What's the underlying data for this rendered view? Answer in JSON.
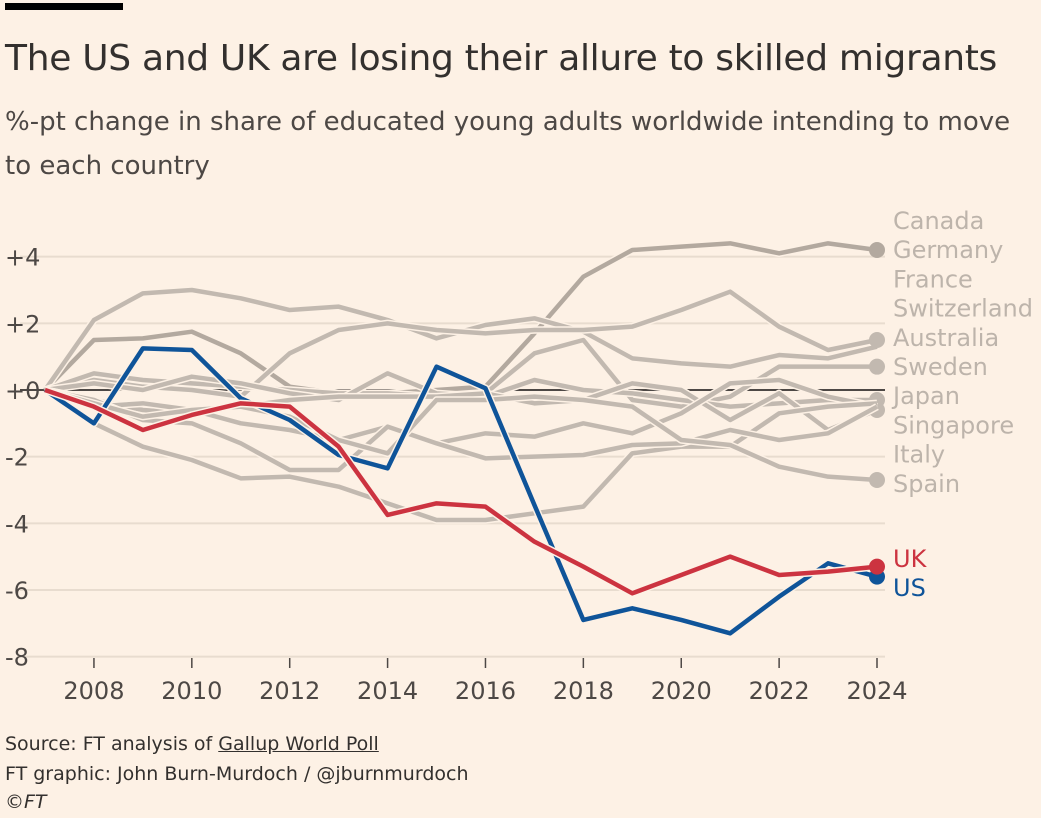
{
  "header": {
    "title": "The US and UK are losing their allure to skilled migrants",
    "subtitle": "%-pt change in share of educated young adults worldwide intending to move to each country"
  },
  "footer": {
    "source_prefix": "Source: FT analysis of ",
    "source_link": "Gallup World Poll",
    "credit": "FT graphic: John Burn-Murdoch / @jburnmurdoch",
    "copyright": "©FT"
  },
  "colors": {
    "background": "#fdf1e5",
    "gray": "#c2b9b0",
    "dark_gray": "#b3a99f",
    "us": "#0f5499",
    "uk": "#cc3340",
    "zero_line": "#4d4845",
    "grid": "#e8dccf"
  },
  "chart_data": {
    "type": "line",
    "title": "The US and UK are losing their allure to skilled migrants",
    "ylabel": "%-pt change in share of educated young adults worldwide intending to move to each country",
    "xlim": [
      2007,
      2024
    ],
    "ylim": [
      -8,
      4.6
    ],
    "x_ticks": [
      2008,
      2010,
      2012,
      2014,
      2016,
      2018,
      2020,
      2022,
      2024
    ],
    "y_ticks": [
      {
        "v": 4,
        "label": "+4"
      },
      {
        "v": 2,
        "label": "+2"
      },
      {
        "v": 0,
        "label": "+0"
      },
      {
        "v": -2,
        "label": "-2"
      },
      {
        "v": -4,
        "label": "-4"
      },
      {
        "v": -6,
        "label": "-6"
      },
      {
        "v": -8,
        "label": "-8"
      }
    ],
    "grid": true,
    "x": [
      2007,
      2008,
      2009,
      2010,
      2011,
      2012,
      2013,
      2014,
      2015,
      2016,
      2017,
      2018,
      2019,
      2020,
      2021,
      2022,
      2023,
      2024
    ],
    "gray_labels": [
      "Canada",
      "Germany",
      "France",
      "Switzerland",
      "Australia",
      "Sweden",
      "Japan",
      "Singapore",
      "Italy",
      "Spain"
    ],
    "gray_series": [
      {
        "values": [
          0,
          1.5,
          1.55,
          1.75,
          1.1,
          0.1,
          -0.1,
          -0.1,
          0,
          0.1,
          1.7,
          3.4,
          4.2,
          4.3,
          4.4,
          4.1,
          4.4,
          4.2
        ],
        "dot": true,
        "dark": true
      },
      {
        "values": [
          0,
          2.1,
          2.9,
          3.0,
          2.75,
          2.4,
          2.5,
          2.1,
          1.55,
          1.95,
          2.15,
          1.75,
          0.95,
          0.8,
          0.7,
          1.05,
          0.95,
          1.3
        ],
        "dot": false
      },
      {
        "values": [
          0,
          0.3,
          0.1,
          0,
          -0.2,
          1.1,
          1.8,
          2.0,
          1.8,
          1.7,
          1.8,
          1.8,
          1.9,
          2.4,
          2.95,
          1.9,
          1.2,
          1.5
        ],
        "dot": true
      },
      {
        "values": [
          0,
          0.5,
          0.3,
          0.2,
          0.1,
          0,
          -0.1,
          -0.1,
          -0.2,
          -0.1,
          1.1,
          1.5,
          -0.3,
          -0.5,
          -0.2,
          0.7,
          0.7,
          0.7
        ],
        "dot": true
      },
      {
        "values": [
          0,
          0.2,
          0,
          0.4,
          0.2,
          -0.1,
          -0.3,
          0.5,
          -0.1,
          -0.2,
          0.3,
          0,
          -0.1,
          -0.3,
          -0.5,
          -0.4,
          -0.3,
          -0.3
        ],
        "dot": true
      },
      {
        "values": [
          0,
          -0.3,
          -0.6,
          -0.7,
          -0.5,
          -0.3,
          -0.2,
          -0.2,
          -0.2,
          -0.1,
          -0.4,
          -0.3,
          0.2,
          0,
          -0.9,
          -0.1,
          -1.2,
          -0.6
        ],
        "dot": true
      },
      {
        "values": [
          0,
          -0.5,
          -0.4,
          -0.6,
          -1.0,
          -1.2,
          -1.5,
          -1.1,
          -1.6,
          -1.3,
          -1.4,
          -1.0,
          -1.3,
          -0.7,
          0.2,
          0.3,
          -0.2,
          -0.5
        ],
        "dot": false
      },
      {
        "values": [
          0,
          -1.0,
          -1.7,
          -2.1,
          -2.65,
          -2.6,
          -2.9,
          -3.4,
          -3.9,
          -3.9,
          -3.7,
          -3.5,
          -1.9,
          -1.7,
          -1.7,
          -0.7,
          -0.5,
          -0.4
        ],
        "dot": false
      },
      {
        "values": [
          0,
          -0.3,
          -0.9,
          -1.0,
          -1.6,
          -2.4,
          -2.4,
          -1.1,
          -1.6,
          -2.05,
          -2.0,
          -1.95,
          -1.65,
          -1.6,
          -1.2,
          -1.5,
          -1.3,
          -0.5
        ],
        "dot": false
      },
      {
        "values": [
          0,
          -0.4,
          -0.8,
          -0.6,
          -0.5,
          -0.8,
          -1.5,
          -1.9,
          -0.3,
          -0.3,
          -0.2,
          -0.3,
          -0.5,
          -1.5,
          -1.65,
          -2.3,
          -2.6,
          -2.7
        ],
        "dot": true
      }
    ],
    "series": [
      {
        "name": "US",
        "color": "#0f5499",
        "values": [
          0,
          -1.0,
          1.25,
          1.2,
          -0.25,
          -0.9,
          -1.95,
          -2.35,
          0.7,
          0.05,
          -3.45,
          -6.9,
          -6.55,
          -6.9,
          -7.3,
          -6.2,
          -5.2,
          -5.6
        ]
      },
      {
        "name": "UK",
        "color": "#cc3340",
        "values": [
          0,
          -0.5,
          -1.2,
          -0.75,
          -0.4,
          -0.5,
          -1.7,
          -3.75,
          -3.4,
          -3.5,
          -4.55,
          -5.3,
          -6.1,
          -5.55,
          -5.0,
          -5.55,
          -5.45,
          -5.3
        ]
      }
    ]
  }
}
